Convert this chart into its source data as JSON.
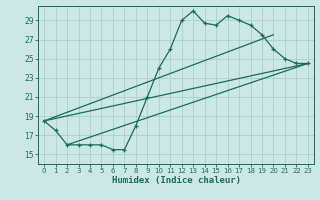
{
  "xlabel": "Humidex (Indice chaleur)",
  "bg_color": "#cce8e6",
  "grid_color": "#aacfcd",
  "line_color": "#1a6b5a",
  "xlim": [
    -0.5,
    23.5
  ],
  "ylim": [
    14.0,
    30.5
  ],
  "xticks": [
    0,
    1,
    2,
    3,
    4,
    5,
    6,
    7,
    8,
    9,
    10,
    11,
    12,
    13,
    14,
    15,
    16,
    17,
    18,
    19,
    20,
    21,
    22,
    23
  ],
  "yticks": [
    15,
    17,
    19,
    21,
    23,
    25,
    27,
    29
  ],
  "main_x": [
    0,
    1,
    2,
    3,
    4,
    5,
    6,
    7,
    8,
    9,
    10,
    11,
    12,
    13,
    14,
    15,
    16,
    17,
    18,
    19,
    20,
    21,
    22,
    23
  ],
  "main_y": [
    18.5,
    17.5,
    16.0,
    16.0,
    16.0,
    16.0,
    15.5,
    15.5,
    18.0,
    21.0,
    24.0,
    26.0,
    29.0,
    30.0,
    28.7,
    28.5,
    29.5,
    29.0,
    28.5,
    27.5,
    26.0,
    25.0,
    24.5,
    24.5
  ],
  "line1_x": [
    0,
    23
  ],
  "line1_y": [
    18.5,
    24.5
  ],
  "line2_x": [
    0,
    20
  ],
  "line2_y": [
    18.5,
    27.5
  ],
  "line3_x": [
    2,
    23
  ],
  "line3_y": [
    16.0,
    24.5
  ]
}
